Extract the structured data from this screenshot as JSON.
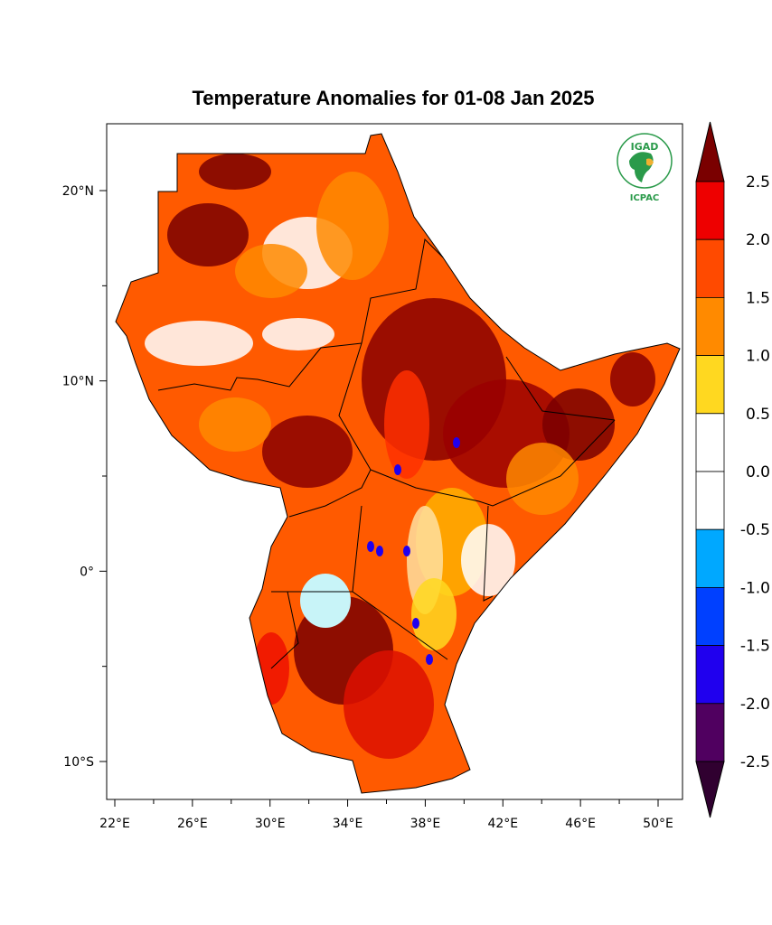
{
  "title": "Temperature Anomalies for 01-08 Jan 2025",
  "logo": {
    "top_text": "IGAD",
    "bottom_text": "ICPAC"
  },
  "axes": {
    "lat_labels": [
      {
        "lat": 20,
        "label": "20°N"
      },
      {
        "lat": 10,
        "label": "10°N"
      },
      {
        "lat": 0,
        "label": "0°"
      },
      {
        "lat": -10,
        "label": "10°S"
      }
    ],
    "lon_labels": [
      {
        "lon": 22,
        "label": "22°E"
      },
      {
        "lon": 26,
        "label": "26°E"
      },
      {
        "lon": 30,
        "label": "30°E"
      },
      {
        "lon": 34,
        "label": "34°E"
      },
      {
        "lon": 38,
        "label": "38°E"
      },
      {
        "lon": 42,
        "label": "42°E"
      },
      {
        "lon": 46,
        "label": "46°E"
      },
      {
        "lon": 50,
        "label": "50°E"
      }
    ],
    "lon_range": [
      21.6,
      51.3
    ],
    "lat_range": [
      -11.9,
      23.5
    ]
  },
  "colorbar": {
    "labels": [
      "2.5",
      "2.0",
      "1.5",
      "1.0",
      "0.5",
      "0.0",
      "-0.5",
      "-1.0",
      "-1.5",
      "-2.0",
      "-2.5"
    ],
    "top_arrow_color": "#7a0000",
    "bottom_arrow_color": "#300030",
    "colors": [
      "#ee0000",
      "#ff4a00",
      "#ff8a00",
      "#ffd820",
      "#ffffff",
      "#ffffff",
      "#00a8ff",
      "#0040ff",
      "#2000ee",
      "#500060"
    ]
  }
}
